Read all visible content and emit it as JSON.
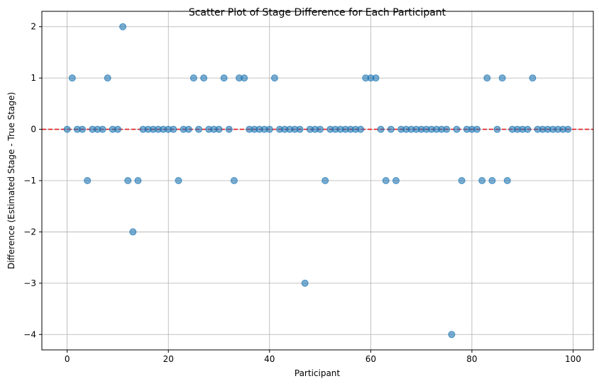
{
  "chart_data": {
    "type": "scatter",
    "title": "Scatter Plot of Stage Difference for Each Participant",
    "xlabel": "Participant",
    "ylabel": "Difference (Estimated Stage - True Stage)",
    "xlim": [
      -5,
      104
    ],
    "ylim": [
      -4.3,
      2.3
    ],
    "xticks": [
      0,
      20,
      40,
      60,
      80,
      100
    ],
    "yticks": [
      -4,
      -3,
      -2,
      -1,
      0,
      1,
      2
    ],
    "xtick_labels": [
      "0",
      "20",
      "40",
      "60",
      "80",
      "100"
    ],
    "ytick_labels": [
      "−4",
      "−3",
      "−2",
      "−1",
      "0",
      "1",
      "2"
    ],
    "grid": true,
    "reference_line": {
      "y": 0,
      "style": "dashed",
      "color": "#e41a1c"
    },
    "point_color": "#1f77b4",
    "x": [
      0,
      1,
      2,
      3,
      4,
      5,
      6,
      7,
      8,
      9,
      10,
      11,
      12,
      13,
      14,
      15,
      16,
      17,
      18,
      19,
      20,
      21,
      22,
      23,
      24,
      25,
      26,
      27,
      28,
      29,
      30,
      31,
      32,
      33,
      34,
      35,
      36,
      37,
      38,
      39,
      40,
      41,
      42,
      43,
      44,
      45,
      46,
      47,
      48,
      49,
      50,
      51,
      52,
      53,
      54,
      55,
      56,
      57,
      58,
      59,
      60,
      61,
      62,
      63,
      64,
      65,
      66,
      67,
      68,
      69,
      70,
      71,
      72,
      73,
      74,
      75,
      76,
      77,
      78,
      79,
      80,
      81,
      82,
      83,
      84,
      85,
      86,
      87,
      88,
      89,
      90,
      91,
      92,
      93,
      94,
      95,
      96,
      97,
      98,
      99
    ],
    "y": [
      0,
      1,
      0,
      0,
      -1,
      0,
      0,
      0,
      1,
      0,
      0,
      2,
      -1,
      -2,
      -1,
      0,
      0,
      0,
      0,
      0,
      0,
      0,
      -1,
      0,
      0,
      1,
      0,
      1,
      0,
      0,
      0,
      1,
      0,
      -1,
      1,
      1,
      0,
      0,
      0,
      0,
      0,
      1,
      0,
      0,
      0,
      0,
      0,
      -3,
      0,
      0,
      0,
      -1,
      0,
      0,
      0,
      0,
      0,
      0,
      0,
      1,
      1,
      1,
      0,
      -1,
      0,
      -1,
      0,
      0,
      0,
      0,
      0,
      0,
      0,
      0,
      0,
      0,
      -4,
      0,
      -1,
      0,
      0,
      0,
      -1,
      1,
      -1,
      0,
      1,
      -1,
      0,
      0,
      0,
      0,
      1,
      0,
      0,
      0,
      0,
      0,
      0,
      0
    ]
  }
}
